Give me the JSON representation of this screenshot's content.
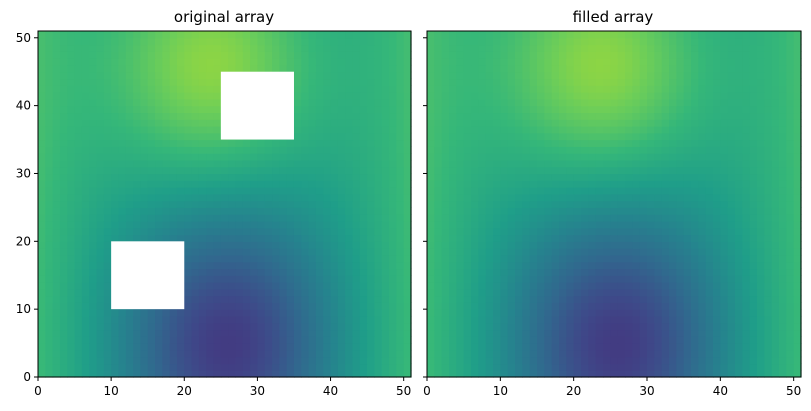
{
  "chart_data": [
    {
      "type": "heatmap",
      "title": "original array",
      "xlabel": "",
      "ylabel": "",
      "xlim": [
        0,
        51
      ],
      "ylim": [
        0,
        51
      ],
      "grid_size": [
        51,
        51
      ],
      "colormap": "viridis",
      "color_range": [
        -1,
        1
      ],
      "field_model": "z = 0.65*exp(-(((x-26)/14)^2 + ((y-5)/18)^2)) * -1 + 0.65*exp(-(((x-24)/14)^2 + ((y-46)/18)^2)) + 0.38*(|x-25.5|/25.5)^2",
      "masked_regions": [
        {
          "x": [
            10,
            20
          ],
          "y": [
            10,
            20
          ]
        },
        {
          "x": [
            25,
            35
          ],
          "y": [
            35,
            45
          ]
        }
      ],
      "xticks": [
        "0",
        "10",
        "20",
        "30",
        "40",
        "50"
      ],
      "yticks": [
        "0",
        "10",
        "20",
        "30",
        "40",
        "50"
      ]
    },
    {
      "type": "heatmap",
      "title": "filled array",
      "xlabel": "",
      "ylabel": "",
      "xlim": [
        0,
        51
      ],
      "ylim": [
        0,
        51
      ],
      "grid_size": [
        51,
        51
      ],
      "colormap": "viridis",
      "color_range": [
        -1,
        1
      ],
      "field_model": "same field as original array with masked regions filled",
      "masked_regions": [],
      "xticks": [
        "0",
        "10",
        "20",
        "30",
        "40",
        "50"
      ],
      "yticks": [
        "0",
        "10",
        "20",
        "30",
        "40",
        "50"
      ]
    }
  ],
  "colors": {
    "viridis": [
      "#440154",
      "#482878",
      "#3e4989",
      "#31688e",
      "#26828e",
      "#1f9e89",
      "#35b779",
      "#6ece58",
      "#b5de2b",
      "#fde725"
    ],
    "mask": "#ffffff",
    "axis": "#000000"
  }
}
